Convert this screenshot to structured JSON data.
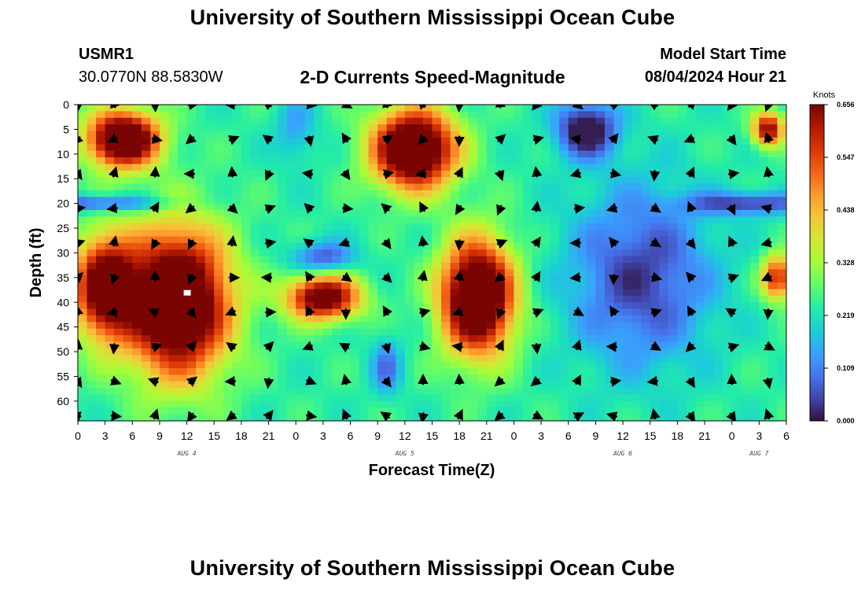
{
  "header": {
    "title": "University of Southern Mississippi Ocean Cube",
    "station": "USMR1",
    "coords": "30.0770N  88.5830W",
    "subtitle": "2-D Currents Speed-Magnitude",
    "model_start_label": "Model Start Time",
    "model_start_value": "08/04/2024 Hour 21"
  },
  "footer": {
    "title": "University of Southern Mississippi Ocean Cube"
  },
  "colors": {
    "palette": [
      "#30123b",
      "#4145ab",
      "#4675ed",
      "#39a2fc",
      "#1bcfd4",
      "#24eca6",
      "#61fc6c",
      "#a4fc3b",
      "#d1e834",
      "#f3c63a",
      "#fe9b2d",
      "#f36315",
      "#d93806",
      "#b11901",
      "#7a0402"
    ]
  },
  "chart_data": {
    "type": "heatmap",
    "title": "2-D Currents Speed-Magnitude",
    "xlabel": "Forecast Time(Z)",
    "ylabel": "Depth (ft)",
    "x_ticks": [
      "0",
      "3",
      "6",
      "9",
      "12",
      "15",
      "18",
      "21",
      "0",
      "3",
      "6",
      "9",
      "12",
      "15",
      "18",
      "21",
      "0",
      "3",
      "6",
      "9",
      "12",
      "15",
      "18",
      "21",
      "0",
      "3",
      "6"
    ],
    "xlim_hours": [
      0,
      78
    ],
    "day_labels": [
      {
        "label": "AUG 4",
        "hour": 12
      },
      {
        "label": "AUG 5",
        "hour": 36
      },
      {
        "label": "AUG 6",
        "hour": 60
      },
      {
        "label": "AUG 7",
        "hour": 75
      }
    ],
    "y_ticks": [
      0,
      5,
      10,
      15,
      20,
      25,
      30,
      35,
      40,
      45,
      50,
      55,
      60
    ],
    "ylim": [
      0,
      64
    ],
    "colorbar": {
      "unit": "Knots",
      "min": 0.0,
      "max": 0.656,
      "tick_labels": [
        "0.656",
        "0.547",
        "0.438",
        "0.328",
        "0.219",
        "0.109",
        "0.000"
      ]
    },
    "speed_blobs": [
      {
        "hour": 5,
        "depth": 7,
        "sh": 3.5,
        "sd": 5,
        "value": 0.6
      },
      {
        "hour": 11,
        "depth": 40,
        "sh": 5,
        "sd": 13,
        "value": 0.63
      },
      {
        "hour": 3,
        "depth": 37,
        "sh": 3,
        "sd": 9,
        "value": 0.5
      },
      {
        "hour": 27,
        "depth": 39,
        "sh": 3.5,
        "sd": 4,
        "value": 0.5
      },
      {
        "hour": 37,
        "depth": 9,
        "sh": 4,
        "sd": 7,
        "value": 0.62
      },
      {
        "hour": 44,
        "depth": 39,
        "sh": 3.5,
        "sd": 10,
        "value": 0.63
      },
      {
        "hour": 76,
        "depth": 5,
        "sh": 1.5,
        "sd": 3,
        "value": 0.42
      },
      {
        "hour": 77,
        "depth": 35,
        "sh": 1.5,
        "sd": 4,
        "value": 0.36
      },
      {
        "hour": 2,
        "depth": 20,
        "sh": 7,
        "sd": 1.5,
        "value": -0.2
      },
      {
        "hour": 27,
        "depth": 31,
        "sh": 3,
        "sd": 3,
        "value": -0.18
      },
      {
        "hour": 34,
        "depth": 53,
        "sh": 1.5,
        "sd": 5,
        "value": -0.14
      },
      {
        "hour": 56,
        "depth": 5,
        "sh": 3,
        "sd": 5,
        "value": -0.28
      },
      {
        "hour": 62,
        "depth": 35,
        "sh": 7,
        "sd": 16,
        "value": -0.2
      },
      {
        "hour": 74,
        "depth": 20,
        "sh": 6,
        "sd": 2,
        "value": -0.2
      },
      {
        "hour": 24,
        "depth": 5,
        "sh": 2,
        "sd": 6,
        "value": -0.1
      }
    ],
    "white_marker": {
      "hour": 12,
      "depth": 38
    },
    "vectors": {
      "arrow_hours": [
        0,
        4,
        8.5,
        12.5,
        17,
        21,
        25.5,
        29.5,
        34,
        38,
        42,
        46.5,
        50.5,
        55,
        59,
        63.5,
        67.5,
        72,
        76
      ],
      "arrow_depths": [
        0,
        7,
        14,
        21,
        28,
        35,
        42,
        49,
        56,
        63
      ]
    }
  }
}
